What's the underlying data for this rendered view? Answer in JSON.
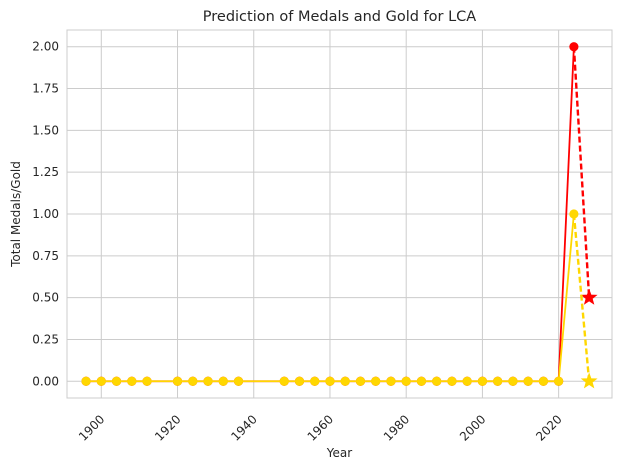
{
  "chart_data": {
    "type": "line",
    "title": "Prediction of Medals and Gold for LCA",
    "xlabel": "Year",
    "ylabel": "Total Medals/Gold",
    "xlim": [
      1891,
      2034
    ],
    "ylim": [
      -0.1,
      2.1
    ],
    "x_ticks": [
      1900,
      1920,
      1940,
      1960,
      1980,
      2000,
      2020
    ],
    "y_ticks": [
      0.0,
      0.25,
      0.5,
      0.75,
      1.0,
      1.25,
      1.5,
      1.75,
      2.0
    ],
    "grid": true,
    "series": [
      {
        "color": "#ff0000",
        "style": "solid",
        "marker": "circle",
        "x": [
          1896,
          1900,
          1904,
          1908,
          1912,
          1920,
          1924,
          1928,
          1932,
          1936,
          1948,
          1952,
          1956,
          1960,
          1964,
          1968,
          1972,
          1976,
          1980,
          1984,
          1988,
          1992,
          1996,
          2000,
          2004,
          2008,
          2012,
          2016,
          2020,
          2024
        ],
        "y": [
          0,
          0,
          0,
          0,
          0,
          0,
          0,
          0,
          0,
          0,
          0,
          0,
          0,
          0,
          0,
          0,
          0,
          0,
          0,
          0,
          0,
          0,
          0,
          0,
          0,
          0,
          0,
          0,
          0,
          2
        ]
      },
      {
        "color": "#ffd700",
        "style": "solid",
        "marker": "circle",
        "x": [
          1896,
          1900,
          1904,
          1908,
          1912,
          1920,
          1924,
          1928,
          1932,
          1936,
          1948,
          1952,
          1956,
          1960,
          1964,
          1968,
          1972,
          1976,
          1980,
          1984,
          1988,
          1992,
          1996,
          2000,
          2004,
          2008,
          2012,
          2016,
          2020,
          2024
        ],
        "y": [
          0,
          0,
          0,
          0,
          0,
          0,
          0,
          0,
          0,
          0,
          0,
          0,
          0,
          0,
          0,
          0,
          0,
          0,
          0,
          0,
          0,
          0,
          0,
          0,
          0,
          0,
          0,
          0,
          0,
          1
        ]
      },
      {
        "color": "#ff0000",
        "style": "dashed",
        "marker": "star",
        "x": [
          2024,
          2028
        ],
        "y": [
          2,
          0.5
        ]
      },
      {
        "color": "#ffd700",
        "style": "dashed",
        "marker": "star",
        "x": [
          2024,
          2028
        ],
        "y": [
          1,
          0.0
        ]
      }
    ]
  }
}
